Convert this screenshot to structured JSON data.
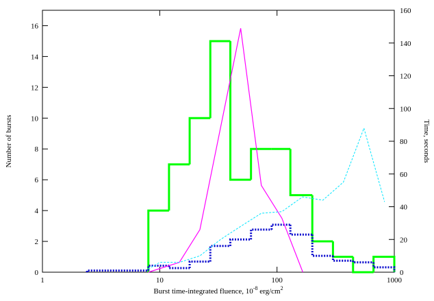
{
  "chart_data": {
    "type": "line",
    "xlabel": [
      "Burst time-integrated fluence, 10",
      "-8",
      " erg/cm",
      "2"
    ],
    "ylabel": "Number of bursts",
    "y2label": "Time, seconds",
    "xscale": "log",
    "xlim": [
      1,
      1000
    ],
    "xticks": [
      1,
      10,
      100,
      1000
    ],
    "ylim": [
      0,
      17
    ],
    "yticks": [
      0,
      2,
      4,
      6,
      8,
      10,
      12,
      14,
      16
    ],
    "y2lim": [
      0,
      160
    ],
    "y2ticks": [
      0,
      20,
      40,
      60,
      80,
      100,
      120,
      140,
      160
    ],
    "series": [
      {
        "drawstyle": "steps",
        "color": "#00ff00",
        "width": 3,
        "dash": "none",
        "bins": [
          8,
          12,
          18,
          27,
          40,
          60,
          90,
          130,
          200,
          300,
          445,
          665,
          1000
        ],
        "values": [
          4,
          7,
          10,
          15,
          6,
          8,
          8,
          5,
          2,
          1,
          0,
          1
        ]
      },
      {
        "drawstyle": "steps",
        "color": "#0000cc",
        "width": 3,
        "dash": "2 2",
        "axis": "y2",
        "bins": [
          2.4,
          8,
          12,
          18,
          27,
          40,
          60,
          90,
          130,
          200,
          300,
          445,
          665,
          1000
        ],
        "values": [
          1,
          4,
          2.5,
          6.5,
          16,
          20,
          26,
          29,
          23,
          10,
          7,
          6,
          3
        ]
      },
      {
        "drawstyle": "line",
        "color": "#ff00ff",
        "width": 1.2,
        "dash": "none",
        "axis": "y2",
        "x": [
          8,
          14.7,
          22,
          49,
          73.5,
          110,
          166
        ],
        "values": [
          0,
          6,
          26,
          149,
          53,
          33,
          0
        ]
      },
      {
        "drawstyle": "line",
        "color": "#00e5ff",
        "width": 1,
        "dash": "3 2",
        "axis": "y2",
        "x": [
          8,
          10,
          14.7,
          22,
          33,
          49,
          73.5,
          110,
          165,
          246,
          368,
          551,
          826
        ],
        "values": [
          2,
          6,
          6,
          10,
          20,
          28,
          36,
          37,
          46,
          44,
          55,
          88,
          43
        ]
      }
    ]
  }
}
